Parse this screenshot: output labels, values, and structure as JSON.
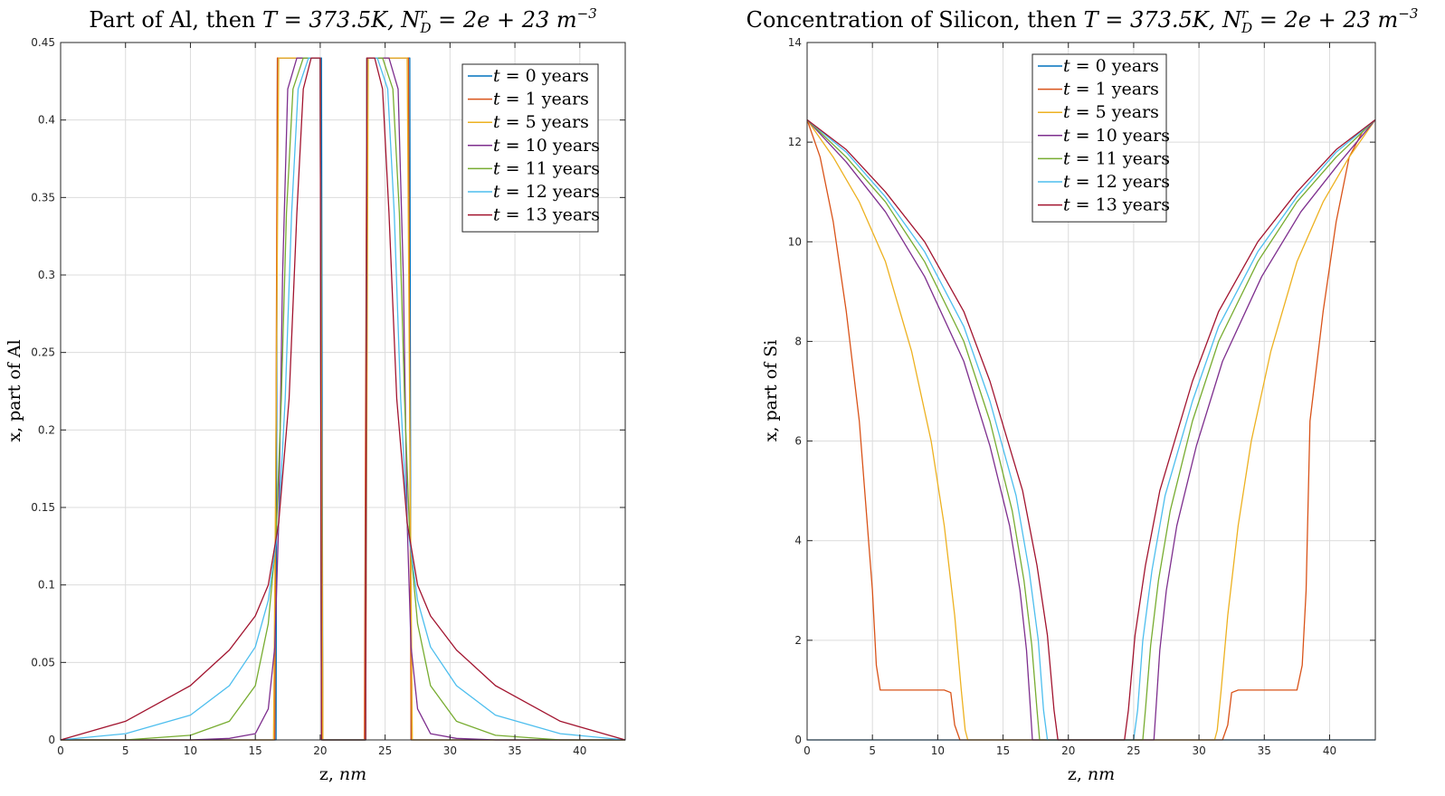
{
  "colors": [
    "#0072BD",
    "#D95319",
    "#EDB120",
    "#7E2F8E",
    "#77AC30",
    "#4DBEEE",
    "#A2142F"
  ],
  "chart_data": [
    {
      "type": "line",
      "title": "Part of Al, then T = 373.5K, N_D^r = 2e + 23 m^-3",
      "title_parts": {
        "pre": "Part of Al, then ",
        "temp": "T = 373.5K, ",
        "n": "N",
        "sup": "r",
        "sub": "D",
        "eq": " = 2e + 23 m",
        "exp": "−3"
      },
      "xlabel": "z, nm",
      "xlabel_parts": {
        "pre": "z, ",
        "unit": "nm"
      },
      "ylabel": "x, part of Al",
      "xlim": [
        0,
        43.5
      ],
      "ylim": [
        0,
        0.45
      ],
      "xticks": [
        "0",
        "5",
        "10",
        "15",
        "20",
        "25",
        "30",
        "35",
        "40"
      ],
      "yticks": [
        "0",
        "0.05",
        "0.1",
        "0.15",
        "0.2",
        "0.25",
        "0.3",
        "0.35",
        "0.4",
        "0.45"
      ],
      "grid": true,
      "legend_position": "top-right",
      "series": [
        {
          "name": "t = 0 years",
          "x": [
            0,
            16.6,
            16.7,
            20.1,
            20.2,
            23.5,
            23.6,
            26.9,
            27.0,
            43.5
          ],
          "y": [
            0,
            0,
            0.44,
            0.44,
            0,
            0,
            0.44,
            0.44,
            0,
            0
          ]
        },
        {
          "name": "t = 1 years",
          "x": [
            0,
            16.5,
            16.7,
            20.0,
            20.2,
            23.4,
            23.6,
            26.8,
            27.0,
            43.5
          ],
          "y": [
            0,
            0,
            0.44,
            0.44,
            0,
            0,
            0.44,
            0.44,
            0,
            0
          ]
        },
        {
          "name": "t = 5 years",
          "x": [
            0,
            16.4,
            16.6,
            16.8,
            20.0,
            20.2,
            23.5,
            23.7,
            26.7,
            26.9,
            27.1,
            43.5
          ],
          "y": [
            0,
            0,
            0.2,
            0.44,
            0.44,
            0,
            0,
            0.44,
            0.44,
            0.2,
            0,
            0
          ]
        },
        {
          "name": "t = 10 years",
          "x": [
            0,
            10,
            13,
            15,
            16,
            16.5,
            16.8,
            17.1,
            17.5,
            18.2,
            20.0,
            20.1,
            23.5,
            23.6,
            25.3,
            26.0,
            26.4,
            26.7,
            27.0,
            27.5,
            28.5,
            30.5,
            33.5,
            43.5
          ],
          "y": [
            0,
            0,
            0.001,
            0.004,
            0.02,
            0.06,
            0.14,
            0.3,
            0.42,
            0.44,
            0.44,
            0,
            0,
            0.44,
            0.44,
            0.42,
            0.3,
            0.14,
            0.06,
            0.02,
            0.004,
            0.001,
            0,
            0
          ]
        },
        {
          "name": "t = 11 years",
          "x": [
            0,
            5,
            10,
            13,
            15,
            16,
            16.6,
            17.0,
            17.4,
            17.9,
            18.7,
            20.0,
            20.1,
            23.5,
            23.6,
            24.8,
            25.6,
            26.1,
            26.5,
            26.9,
            27.5,
            28.5,
            30.5,
            33.5,
            38.5,
            43.5
          ],
          "y": [
            0,
            0,
            0.003,
            0.012,
            0.035,
            0.075,
            0.13,
            0.22,
            0.34,
            0.42,
            0.44,
            0.44,
            0,
            0,
            0.44,
            0.44,
            0.42,
            0.34,
            0.22,
            0.13,
            0.075,
            0.035,
            0.012,
            0.003,
            0,
            0
          ]
        },
        {
          "name": "t = 12 years",
          "x": [
            0,
            5,
            10,
            13,
            15,
            16,
            16.8,
            17.3,
            17.8,
            18.3,
            19.1,
            20.0,
            20.1,
            23.5,
            23.6,
            24.4,
            25.2,
            25.7,
            26.2,
            26.7,
            27.5,
            28.5,
            30.5,
            33.5,
            38.5,
            43.5
          ],
          "y": [
            0,
            0.004,
            0.016,
            0.035,
            0.06,
            0.09,
            0.14,
            0.22,
            0.34,
            0.42,
            0.44,
            0.44,
            0,
            0,
            0.44,
            0.44,
            0.42,
            0.34,
            0.22,
            0.14,
            0.09,
            0.06,
            0.035,
            0.016,
            0.004,
            0
          ]
        },
        {
          "name": "t = 13 years",
          "x": [
            0,
            5,
            10,
            13,
            15,
            16,
            16.8,
            17.6,
            18.2,
            18.7,
            19.3,
            20.0,
            20.1,
            23.5,
            23.6,
            24.2,
            24.8,
            25.3,
            25.9,
            26.7,
            27.5,
            28.5,
            30.5,
            33.5,
            38.5,
            43.5
          ],
          "y": [
            0,
            0.012,
            0.035,
            0.058,
            0.08,
            0.1,
            0.14,
            0.22,
            0.34,
            0.42,
            0.44,
            0.44,
            0,
            0,
            0.44,
            0.44,
            0.42,
            0.34,
            0.22,
            0.14,
            0.1,
            0.08,
            0.058,
            0.035,
            0.012,
            0
          ]
        }
      ]
    },
    {
      "type": "line",
      "title": "Concentration of Silicon, then T = 373.5K, N_D^r = 2e + 23 m^-3",
      "title_parts": {
        "pre": "Concentration of Silicon, then ",
        "temp": "T = 373.5K, ",
        "n": "N",
        "sup": "r",
        "sub": "D",
        "eq": " = 2e + 23 m",
        "exp": "−3"
      },
      "xlabel": "z, nm",
      "xlabel_parts": {
        "pre": "z, ",
        "unit": "nm"
      },
      "ylabel": "x, part of Si",
      "xlim": [
        0,
        43.5
      ],
      "ylim": [
        0,
        14
      ],
      "xticks": [
        "0",
        "5",
        "10",
        "15",
        "20",
        "25",
        "30",
        "35",
        "40"
      ],
      "yticks": [
        "0",
        "2",
        "4",
        "6",
        "8",
        "10",
        "12",
        "14"
      ],
      "grid": true,
      "legend_position": "top-center",
      "series": [
        {
          "name": "t = 0 years",
          "x": [
            0,
            43.5
          ],
          "y": [
            0,
            0
          ]
        },
        {
          "name": "t = 1 years",
          "x": [
            0,
            1,
            2,
            3,
            4,
            5,
            5.3,
            5.6,
            6.0,
            10.5,
            11.0,
            11.3,
            11.7,
            31.8,
            32.2,
            32.5,
            33.0,
            37.5,
            37.9,
            38.2,
            38.5,
            39.5,
            40.5,
            41.5,
            42.5,
            43.5
          ],
          "y": [
            12.45,
            11.7,
            10.4,
            8.6,
            6.4,
            3.0,
            1.5,
            1.0,
            1.0,
            1.0,
            0.95,
            0.3,
            0,
            0,
            0.3,
            0.95,
            1.0,
            1.0,
            1.5,
            3.0,
            6.4,
            8.6,
            10.4,
            11.7,
            12.2,
            12.45
          ]
        },
        {
          "name": "t = 5 years",
          "x": [
            0,
            2,
            4,
            6,
            8,
            9.5,
            10.5,
            11.3,
            11.8,
            12.1,
            12.3,
            31.2,
            31.4,
            31.7,
            32.2,
            33.0,
            34.0,
            35.5,
            37.5,
            39.5,
            41.5,
            43.5
          ],
          "y": [
            12.45,
            11.7,
            10.8,
            9.6,
            7.8,
            6.0,
            4.3,
            2.5,
            1.0,
            0.2,
            0,
            0,
            0.2,
            1.0,
            2.5,
            4.3,
            6.0,
            7.8,
            9.6,
            10.8,
            11.7,
            12.45
          ]
        },
        {
          "name": "t = 10 years",
          "x": [
            0,
            3,
            6,
            9,
            12,
            14,
            15.5,
            16.3,
            16.8,
            17.1,
            17.25,
            26.55,
            26.7,
            27.0,
            27.5,
            28.3,
            29.8,
            31.8,
            34.8,
            37.8,
            40.8,
            43.5
          ],
          "y": [
            12.45,
            11.6,
            10.6,
            9.3,
            7.6,
            5.9,
            4.3,
            3.0,
            1.8,
            0.6,
            0,
            0,
            0.6,
            1.8,
            3.0,
            4.3,
            5.9,
            7.6,
            9.3,
            10.6,
            11.6,
            12.45
          ]
        },
        {
          "name": "t = 11 years",
          "x": [
            0,
            3,
            6,
            9,
            12,
            14,
            15.7,
            16.6,
            17.2,
            17.6,
            17.8,
            25.7,
            25.9,
            26.3,
            26.9,
            27.8,
            29.5,
            31.5,
            34.5,
            37.5,
            40.5,
            43.5
          ],
          "y": [
            12.45,
            11.7,
            10.8,
            9.6,
            8.0,
            6.4,
            4.6,
            3.2,
            1.9,
            0.6,
            0,
            0,
            0.6,
            1.9,
            3.2,
            4.6,
            6.4,
            8.0,
            9.6,
            10.8,
            11.7,
            12.45
          ]
        },
        {
          "name": "t = 12 years",
          "x": [
            0,
            3,
            6,
            9,
            12,
            14,
            16.0,
            17.0,
            17.7,
            18.1,
            18.4,
            25.0,
            25.3,
            25.7,
            26.4,
            27.4,
            29.5,
            31.5,
            34.5,
            37.5,
            40.5,
            43.5
          ],
          "y": [
            12.45,
            11.8,
            10.9,
            9.8,
            8.3,
            6.8,
            4.9,
            3.4,
            2.0,
            0.6,
            0,
            0,
            0.6,
            2.0,
            3.4,
            4.9,
            6.8,
            8.3,
            9.8,
            10.9,
            11.8,
            12.45
          ]
        },
        {
          "name": "t = 13 years",
          "x": [
            0,
            3,
            6,
            9,
            12,
            14,
            16.5,
            17.6,
            18.4,
            18.9,
            19.2,
            24.3,
            24.6,
            25.1,
            25.9,
            27.0,
            29.5,
            31.5,
            34.5,
            37.5,
            40.5,
            43.5
          ],
          "y": [
            12.45,
            11.85,
            11.0,
            10.0,
            8.6,
            7.2,
            5.0,
            3.5,
            2.1,
            0.6,
            0,
            0,
            0.6,
            2.1,
            3.5,
            5.0,
            7.2,
            8.6,
            10.0,
            11.0,
            11.85,
            12.45
          ]
        }
      ]
    }
  ]
}
